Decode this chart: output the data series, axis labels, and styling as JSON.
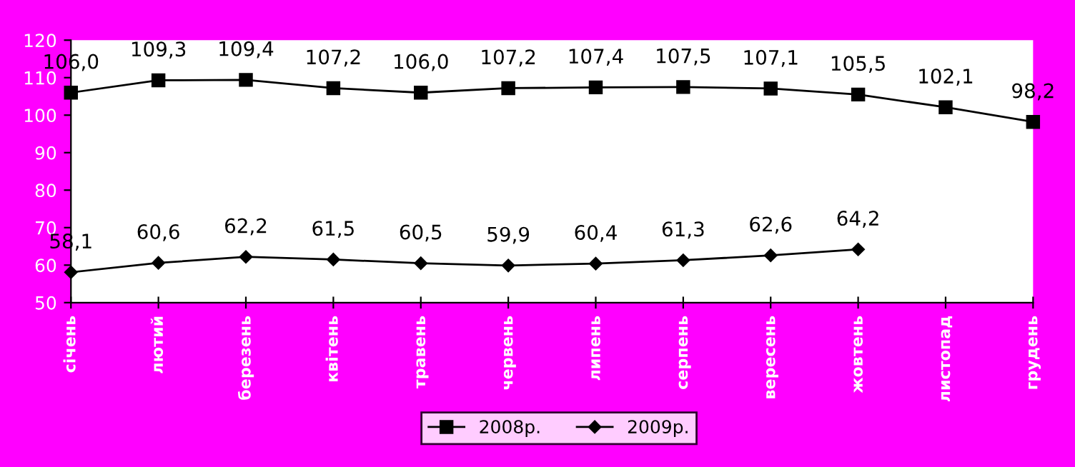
{
  "chart_data": {
    "type": "line",
    "categories": [
      "січень",
      "лютий",
      "березень",
      "квітень",
      "травень",
      "червень",
      "липень",
      "серпень",
      "вересень",
      "жовтень",
      "листопад",
      "грудень"
    ],
    "series": [
      {
        "name": "2008р.",
        "color": "#000000",
        "marker": "square",
        "values": [
          106.0,
          109.3,
          109.4,
          107.2,
          106.0,
          107.2,
          107.4,
          107.5,
          107.1,
          105.5,
          102.1,
          98.2
        ],
        "value_labels": [
          "106,0",
          "109,3",
          "109,4",
          "107,2",
          "106,0",
          "107,2",
          "107,4",
          "107,5",
          "107,1",
          "105,5",
          "102,1",
          "98,2"
        ]
      },
      {
        "name": "2009р.",
        "color": "#000000",
        "marker": "diamond",
        "values": [
          58.1,
          60.6,
          62.2,
          61.5,
          60.5,
          59.9,
          60.4,
          61.3,
          62.6,
          64.2,
          null,
          null
        ],
        "value_labels": [
          "58,1",
          "60,6",
          "62,2",
          "61,5",
          "60,5",
          "59,9",
          "60,4",
          "61,3",
          "62,6",
          "64,2",
          null,
          null
        ]
      }
    ],
    "ylim": [
      50,
      120
    ],
    "yticks": [
      50,
      60,
      70,
      80,
      90,
      100,
      110,
      120
    ],
    "grid": false,
    "legend": "bottom",
    "line_style": "solid"
  }
}
